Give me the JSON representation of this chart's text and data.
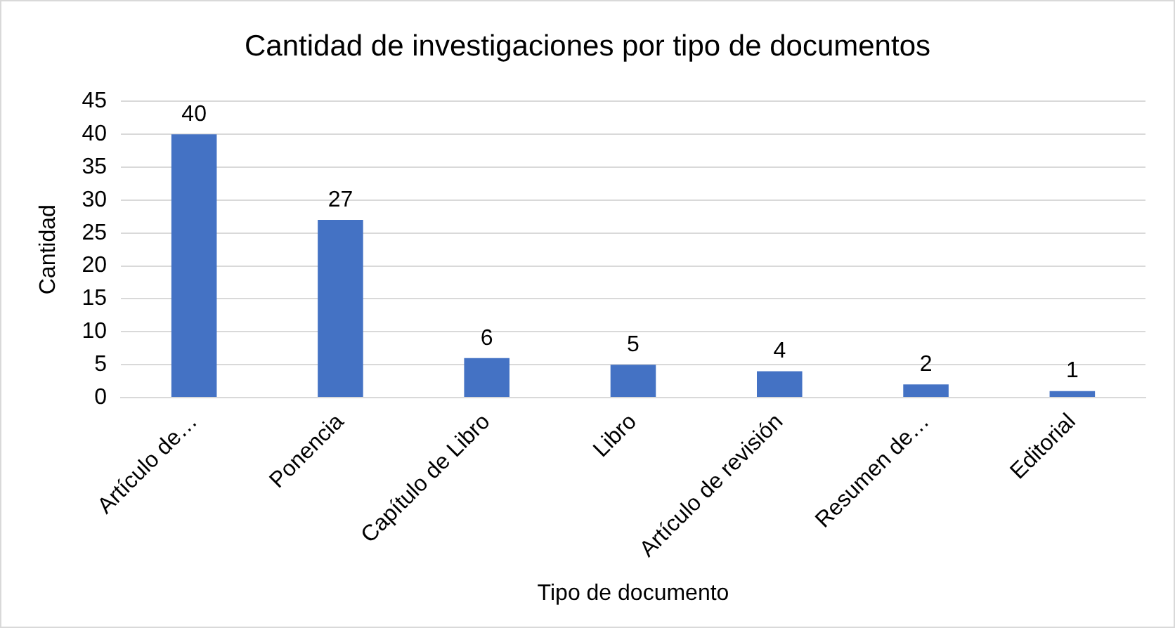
{
  "chart_data": {
    "type": "bar",
    "title": "Cantidad de investigaciones por tipo de documentos",
    "xlabel": "Tipo de documento",
    "ylabel": "Cantidad",
    "categories": [
      "Artículo de…",
      "Ponencia",
      "Capítulo de Libro",
      "Libro",
      "Artículo de revisión",
      "Resumen de…",
      "Editorial"
    ],
    "values": [
      40,
      27,
      6,
      5,
      4,
      2,
      1
    ],
    "color": "#4472c4",
    "ylim": [
      0,
      45
    ],
    "yticks": [
      0,
      5,
      10,
      15,
      20,
      25,
      30,
      35,
      40,
      45
    ],
    "grid": "y",
    "data_labels": true
  }
}
